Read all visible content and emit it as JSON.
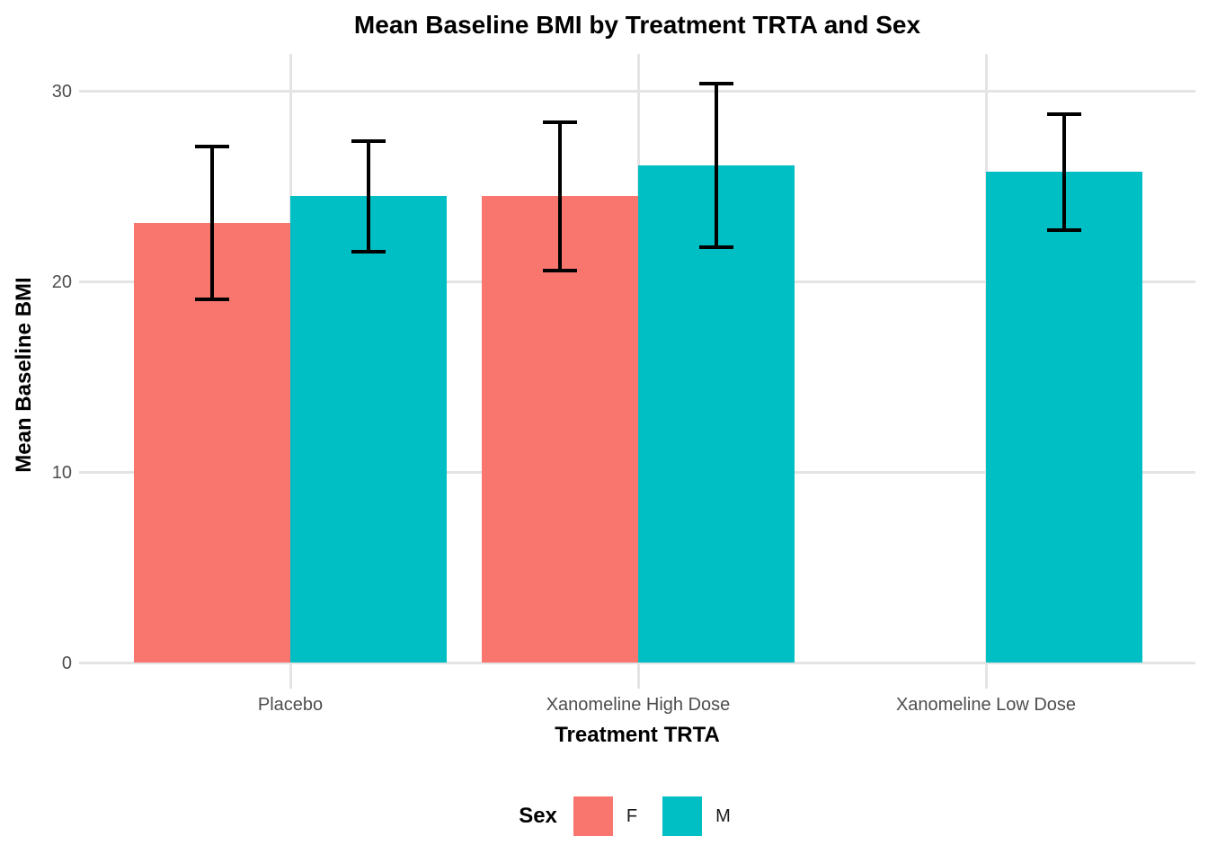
{
  "chart_data": {
    "type": "bar",
    "title": "Mean Baseline BMI by Treatment TRTA and Sex",
    "xlabel": "Treatment TRTA",
    "ylabel": "Mean Baseline BMI",
    "categories": [
      "Placebo",
      "Xanomeline High Dose",
      "Xanomeline Low Dose"
    ],
    "yticks": [
      0,
      10,
      20,
      30
    ],
    "ylim": [
      0,
      32
    ],
    "grid": true,
    "legend": {
      "title": "Sex",
      "position": "bottom",
      "entries": [
        {
          "label": "F",
          "color": "#F8766D"
        },
        {
          "label": "M",
          "color": "#00BFC4"
        }
      ]
    },
    "series": [
      {
        "name": "F",
        "color": "#F8766D",
        "values": [
          23.1,
          24.5,
          null
        ],
        "error_low": [
          19.1,
          20.6,
          null
        ],
        "error_high": [
          27.1,
          28.4,
          null
        ]
      },
      {
        "name": "M",
        "color": "#00BFC4",
        "values": [
          24.5,
          26.1,
          25.8
        ],
        "error_low": [
          21.6,
          21.8,
          22.7
        ],
        "error_high": [
          27.4,
          30.4,
          28.8
        ]
      }
    ]
  }
}
